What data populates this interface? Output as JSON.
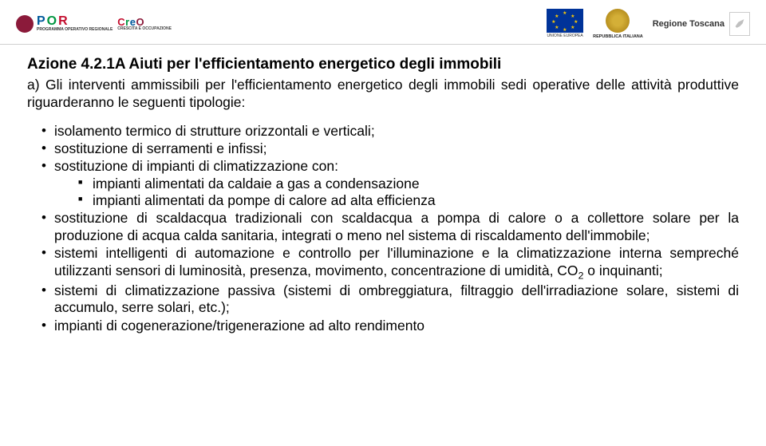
{
  "header": {
    "por_label_sub": "PROGRAMMA OPERATIVO REGIONALE",
    "creo_sub": "CRESCITA E OCCUPAZIONE",
    "eu_caption": "UNIONE EUROPEA",
    "it_caption": "REPUBBLICA ITALIANA",
    "rt_label": "Regione Toscana"
  },
  "title": "Azione 4.2.1A  Aiuti per l'efficientamento energetico degli immobili",
  "subtitle": "a) Gli interventi ammissibili per l'efficientamento energetico degli immobili sedi operative delle attività produttive riguarderanno le seguenti tipologie:",
  "bullets": [
    {
      "text": "isolamento termico di strutture orizzontali e verticali;"
    },
    {
      "text": "sostituzione di serramenti e infissi;"
    },
    {
      "text": "sostituzione di impianti di climatizzazione con:",
      "sub": [
        "impianti alimentati da caldaie a gas a condensazione",
        "impianti alimentati da pompe di calore ad alta efficienza"
      ]
    },
    {
      "text": "sostituzione di scaldacqua tradizionali con scaldacqua a pompa di calore o a collettore solare per la produzione di acqua calda sanitaria, integrati o meno nel sistema di riscaldamento dell'immobile;"
    },
    {
      "text": "sistemi intelligenti di automazione e controllo per l'illuminazione e la climatizzazione interna sempreché utilizzanti sensori di luminosità, presenza, movimento, concentrazione di umidità, CO₂ o inquinanti;"
    },
    {
      "text": "sistemi di climatizzazione passiva (sistemi di ombreggiatura, filtraggio dell'irradiazione solare, sistemi di accumulo, serre solari, etc.);"
    },
    {
      "text": "impianti di cogenerazione/trigenerazione ad alto rendimento"
    }
  ],
  "style": {
    "title_fontsize": 19,
    "body_fontsize": 17.5,
    "text_color": "#000000",
    "background": "#ffffff",
    "header_border": "#d0d0d0",
    "por_colors": {
      "P": "#005a9c",
      "O": "#009640",
      "R": "#c30e2e"
    },
    "creo_colors": {
      "C": "#c30e2e",
      "r": "#009640",
      "e": "#005a9c",
      "O": "#8b1a3a"
    },
    "eu_flag_bg": "#003399",
    "eu_star_color": "#ffcc00"
  }
}
